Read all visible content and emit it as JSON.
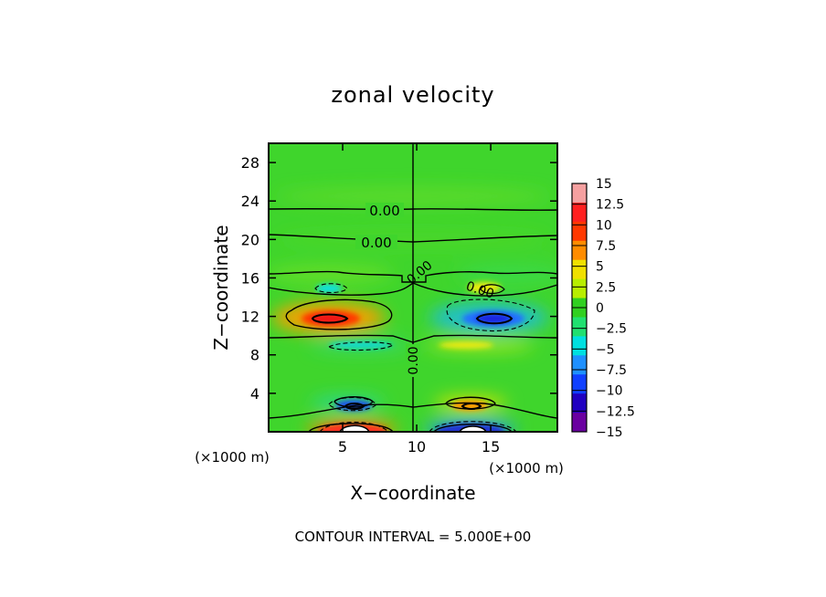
{
  "chart_data": {
    "type": "heatmap",
    "title": "zonal velocity",
    "xlabel": "X−coordinate",
    "ylabel": "Z−coordinate",
    "x_unit_left": "(×1000 m)",
    "x_unit_right": "(×1000 m)",
    "footer": "CONTOUR INTERVAL = 5.000E+00",
    "xlim": [
      0,
      19.5
    ],
    "ylim": [
      0,
      30
    ],
    "xticks": [
      5,
      10,
      15
    ],
    "yticks": [
      4,
      8,
      12,
      16,
      20,
      24,
      28
    ],
    "colorbar": {
      "levels": [
        -15,
        -12.5,
        -10,
        -7.5,
        -5,
        -2.5,
        0,
        2.5,
        5,
        7.5,
        10,
        12.5,
        15
      ],
      "labels": [
        "15",
        "12.5",
        "10",
        "7.5",
        "5",
        "2.5",
        "0",
        "−2.5",
        "−5",
        "−7.5",
        "−10",
        "−12.5",
        "−15"
      ],
      "colors_top_to_bottom": [
        "#f5a0a0",
        "#ff2020",
        "#ff3800",
        "#ff8c00",
        "#f0e000",
        "#b8ee00",
        "#30d020",
        "#20e070",
        "#00e0e0",
        "#1e90ff",
        "#1040ff",
        "#2000c0",
        "#6a00a0"
      ]
    },
    "contour_labels": [
      "0.00",
      "0.00",
      "0.00",
      "0.00",
      "0.00"
    ],
    "features": [
      {
        "x": 4.3,
        "z": 11.8,
        "value": 11,
        "kind": "max"
      },
      {
        "x": 14.0,
        "z": 11.8,
        "value": -11,
        "kind": "min"
      },
      {
        "x": 4.2,
        "z": 2.7,
        "value": -10,
        "kind": "min"
      },
      {
        "x": 14.0,
        "z": 2.7,
        "value": 9,
        "kind": "max"
      },
      {
        "x": 4.5,
        "z": 0.5,
        "value": 13,
        "kind": "max"
      },
      {
        "x": 13.5,
        "z": 0.5,
        "value": -13,
        "kind": "min"
      },
      {
        "x": 15.0,
        "z": 14.8,
        "value": 5,
        "kind": "max"
      },
      {
        "x": 3.5,
        "z": 14.8,
        "value": -4,
        "kind": "min"
      },
      {
        "x": 13.5,
        "z": 9.0,
        "value": 4,
        "kind": "max"
      },
      {
        "x": 5.0,
        "z": 9.0,
        "value": -3,
        "kind": "min"
      }
    ]
  }
}
